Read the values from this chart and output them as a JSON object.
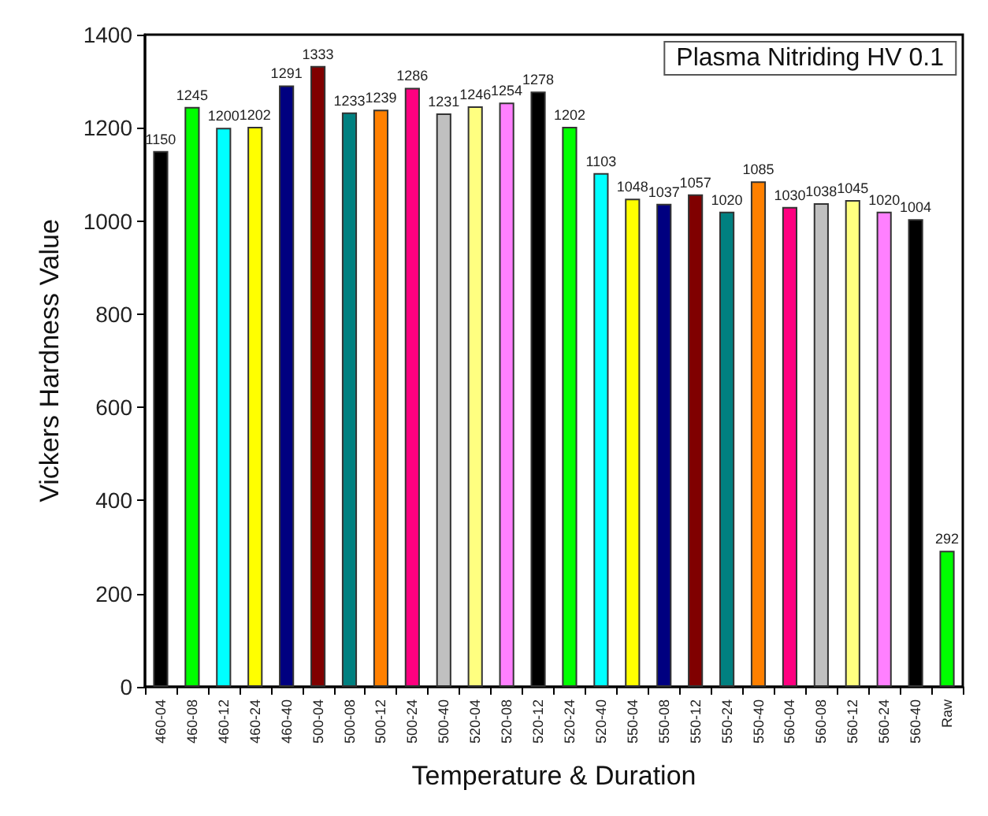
{
  "chart_data": {
    "type": "bar",
    "title": "Plasma Nitriding HV 0.1",
    "xlabel": "Temperature & Duration",
    "ylabel": "Vickers Hardness Value",
    "categories": [
      "460-04",
      "460-08",
      "460-12",
      "460-24",
      "460-40",
      "500-04",
      "500-08",
      "500-12",
      "500-24",
      "500-40",
      "520-04",
      "520-08",
      "520-12",
      "520-24",
      "520-40",
      "550-04",
      "550-08",
      "550-12",
      "550-24",
      "550-40",
      "560-04",
      "560-08",
      "560-12",
      "560-24",
      "560-40",
      "Raw"
    ],
    "values": [
      1150,
      1245,
      1200,
      1202,
      1291,
      1333,
      1233,
      1239,
      1286,
      1231,
      1246,
      1254,
      1278,
      1202,
      1103,
      1048,
      1037,
      1057,
      1020,
      1085,
      1030,
      1038,
      1045,
      1020,
      1004,
      292
    ],
    "colors": [
      "#000000",
      "#00ff00",
      "#00ffff",
      "#ffff00",
      "#000080",
      "#800000",
      "#008080",
      "#ff8000",
      "#ff0080",
      "#c0c0c0",
      "#ffff80",
      "#ff80ff",
      "#000000",
      "#00ff00",
      "#00ffff",
      "#ffff00",
      "#000080",
      "#800000",
      "#008080",
      "#ff8000",
      "#ff0080",
      "#c0c0c0",
      "#ffff80",
      "#ff80ff",
      "#000000",
      "#00ff00"
    ],
    "ylim": [
      0,
      1400
    ],
    "yticks": [
      0,
      200,
      400,
      600,
      800,
      1000,
      1200,
      1400
    ],
    "data_labels": true,
    "grid": false
  }
}
